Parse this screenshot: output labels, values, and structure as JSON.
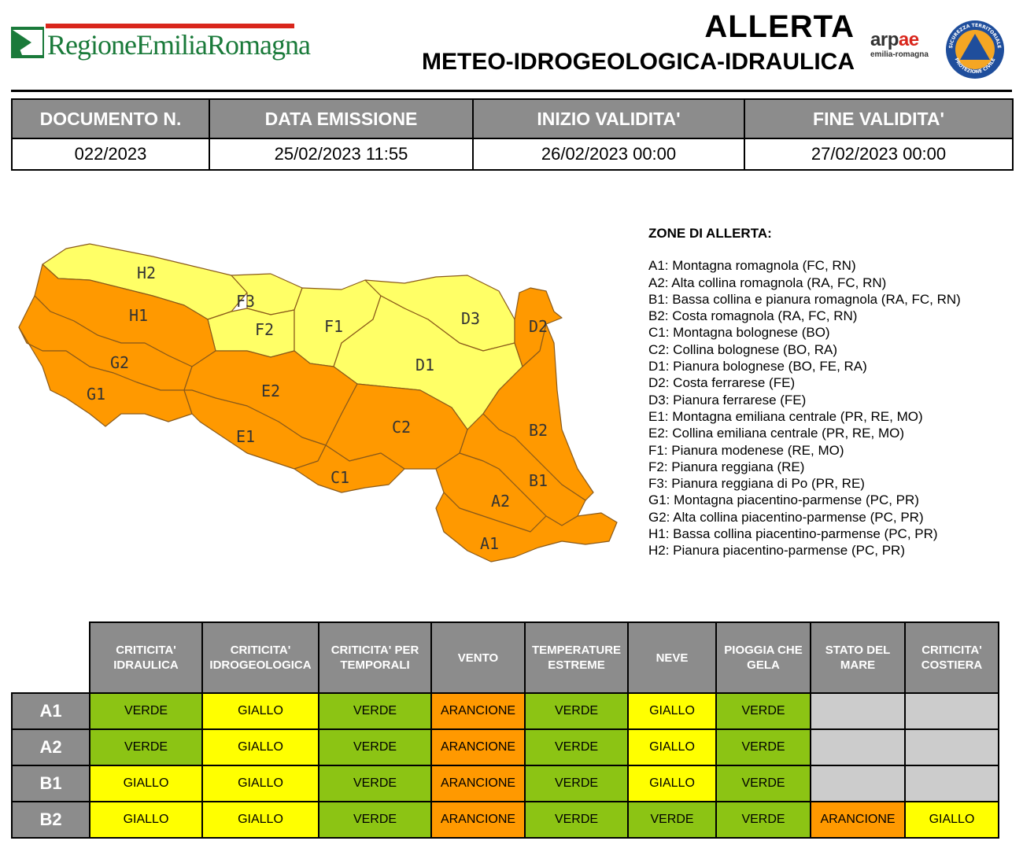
{
  "header": {
    "brand": "RegioneEmiliaRomagna",
    "title": "ALLERTA",
    "subtitle": "METEO-IDROGEOLOGICA-IDRAULICA",
    "arpae_word": "arp",
    "arpae_word_accent": "ae",
    "arpae_sub": "emilia-romagna",
    "protezione_ring_top": "SICUREZZA TERRITORIALE",
    "protezione_ring_bottom": "PROTEZIONE CIVILE"
  },
  "document": {
    "headers": [
      "DOCUMENTO N.",
      "DATA EMISSIONE",
      "INIZIO VALIDITA'",
      "FINE VALIDITA'"
    ],
    "values": [
      "022/2023",
      "25/02/2023 11:55",
      "26/02/2023 00:00",
      "27/02/2023 00:00"
    ]
  },
  "map": {
    "labels": [
      "H2",
      "H1",
      "G2",
      "G1",
      "F3",
      "F2",
      "F1",
      "E2",
      "E1",
      "C2",
      "C1",
      "D3",
      "D2",
      "D1",
      "B2",
      "B1",
      "A2",
      "A1"
    ],
    "zone_levels": {
      "H2": "GIALLO",
      "F3": "GIALLO",
      "F2": "GIALLO",
      "F1": "GIALLO",
      "D1": "GIALLO",
      "D3": "GIALLO",
      "H1": "ARANCIONE",
      "G2": "ARANCIONE",
      "G1": "ARANCIONE",
      "E1": "ARANCIONE",
      "E2": "ARANCIONE",
      "C1": "ARANCIONE",
      "C2": "ARANCIONE",
      "D2": "ARANCIONE",
      "B1": "ARANCIONE",
      "B2": "ARANCIONE",
      "A1": "ARANCIONE",
      "A2": "ARANCIONE"
    },
    "colors": {
      "GIALLO": "#ffff66",
      "ARANCIONE": "#ff9900",
      "border": "#8a5a1a"
    }
  },
  "zones": {
    "title": "ZONE DI ALLERTA:",
    "items": [
      "A1: Montagna romagnola (FC, RN)",
      "A2: Alta collina romagnola (RA, FC, RN)",
      "B1: Bassa collina e pianura romagnola (RA, FC, RN)",
      "B2: Costa romagnola (RA, FC, RN)",
      "C1: Montagna bolognese (BO)",
      "C2: Collina bolognese (BO, RA)",
      "D1: Pianura bolognese (BO, FE, RA)",
      "D2: Costa ferrarese (FE)",
      "D3: Pianura ferrarese (FE)",
      "E1: Montagna emiliana centrale (PR, RE, MO)",
      "E2: Collina emiliana centrale (PR, RE, MO)",
      "F1: Pianura modenese (RE, MO)",
      "F2: Pianura reggiana (RE)",
      "F3: Pianura reggiana di Po (PR, RE)",
      "G1: Montagna piacentino-parmense (PC, PR)",
      "G2: Alta collina piacentino-parmense (PC, PR)",
      "H1: Bassa collina piacentino-parmense (PC, PR)",
      "H2: Pianura piacentino-parmense (PC, PR)"
    ]
  },
  "status": {
    "columns": [
      "CRITICITA' IDRAULICA",
      "CRITICITA' IDROGEOLOGICA",
      "CRITICITA' PER TEMPORALI",
      "VENTO",
      "TEMPERATURE ESTREME",
      "NEVE",
      "PIOGGIA CHE GELA",
      "STATO DEL MARE",
      "CRITICITA' COSTIERA"
    ],
    "rows": [
      {
        "zone": "A1",
        "values": [
          "VERDE",
          "GIALLO",
          "VERDE",
          "ARANCIONE",
          "VERDE",
          "GIALLO",
          "VERDE",
          "",
          ""
        ]
      },
      {
        "zone": "A2",
        "values": [
          "VERDE",
          "GIALLO",
          "VERDE",
          "ARANCIONE",
          "VERDE",
          "GIALLO",
          "VERDE",
          "",
          ""
        ]
      },
      {
        "zone": "B1",
        "values": [
          "GIALLO",
          "GIALLO",
          "VERDE",
          "ARANCIONE",
          "VERDE",
          "GIALLO",
          "VERDE",
          "",
          ""
        ]
      },
      {
        "zone": "B2",
        "values": [
          "GIALLO",
          "GIALLO",
          "VERDE",
          "ARANCIONE",
          "VERDE",
          "VERDE",
          "VERDE",
          "ARANCIONE",
          "GIALLO"
        ]
      }
    ],
    "level_colors": {
      "VERDE": "#8cc414",
      "GIALLO": "#ffff00",
      "ARANCIONE": "#ff9900",
      "EMPTY": "#cccccc"
    }
  }
}
